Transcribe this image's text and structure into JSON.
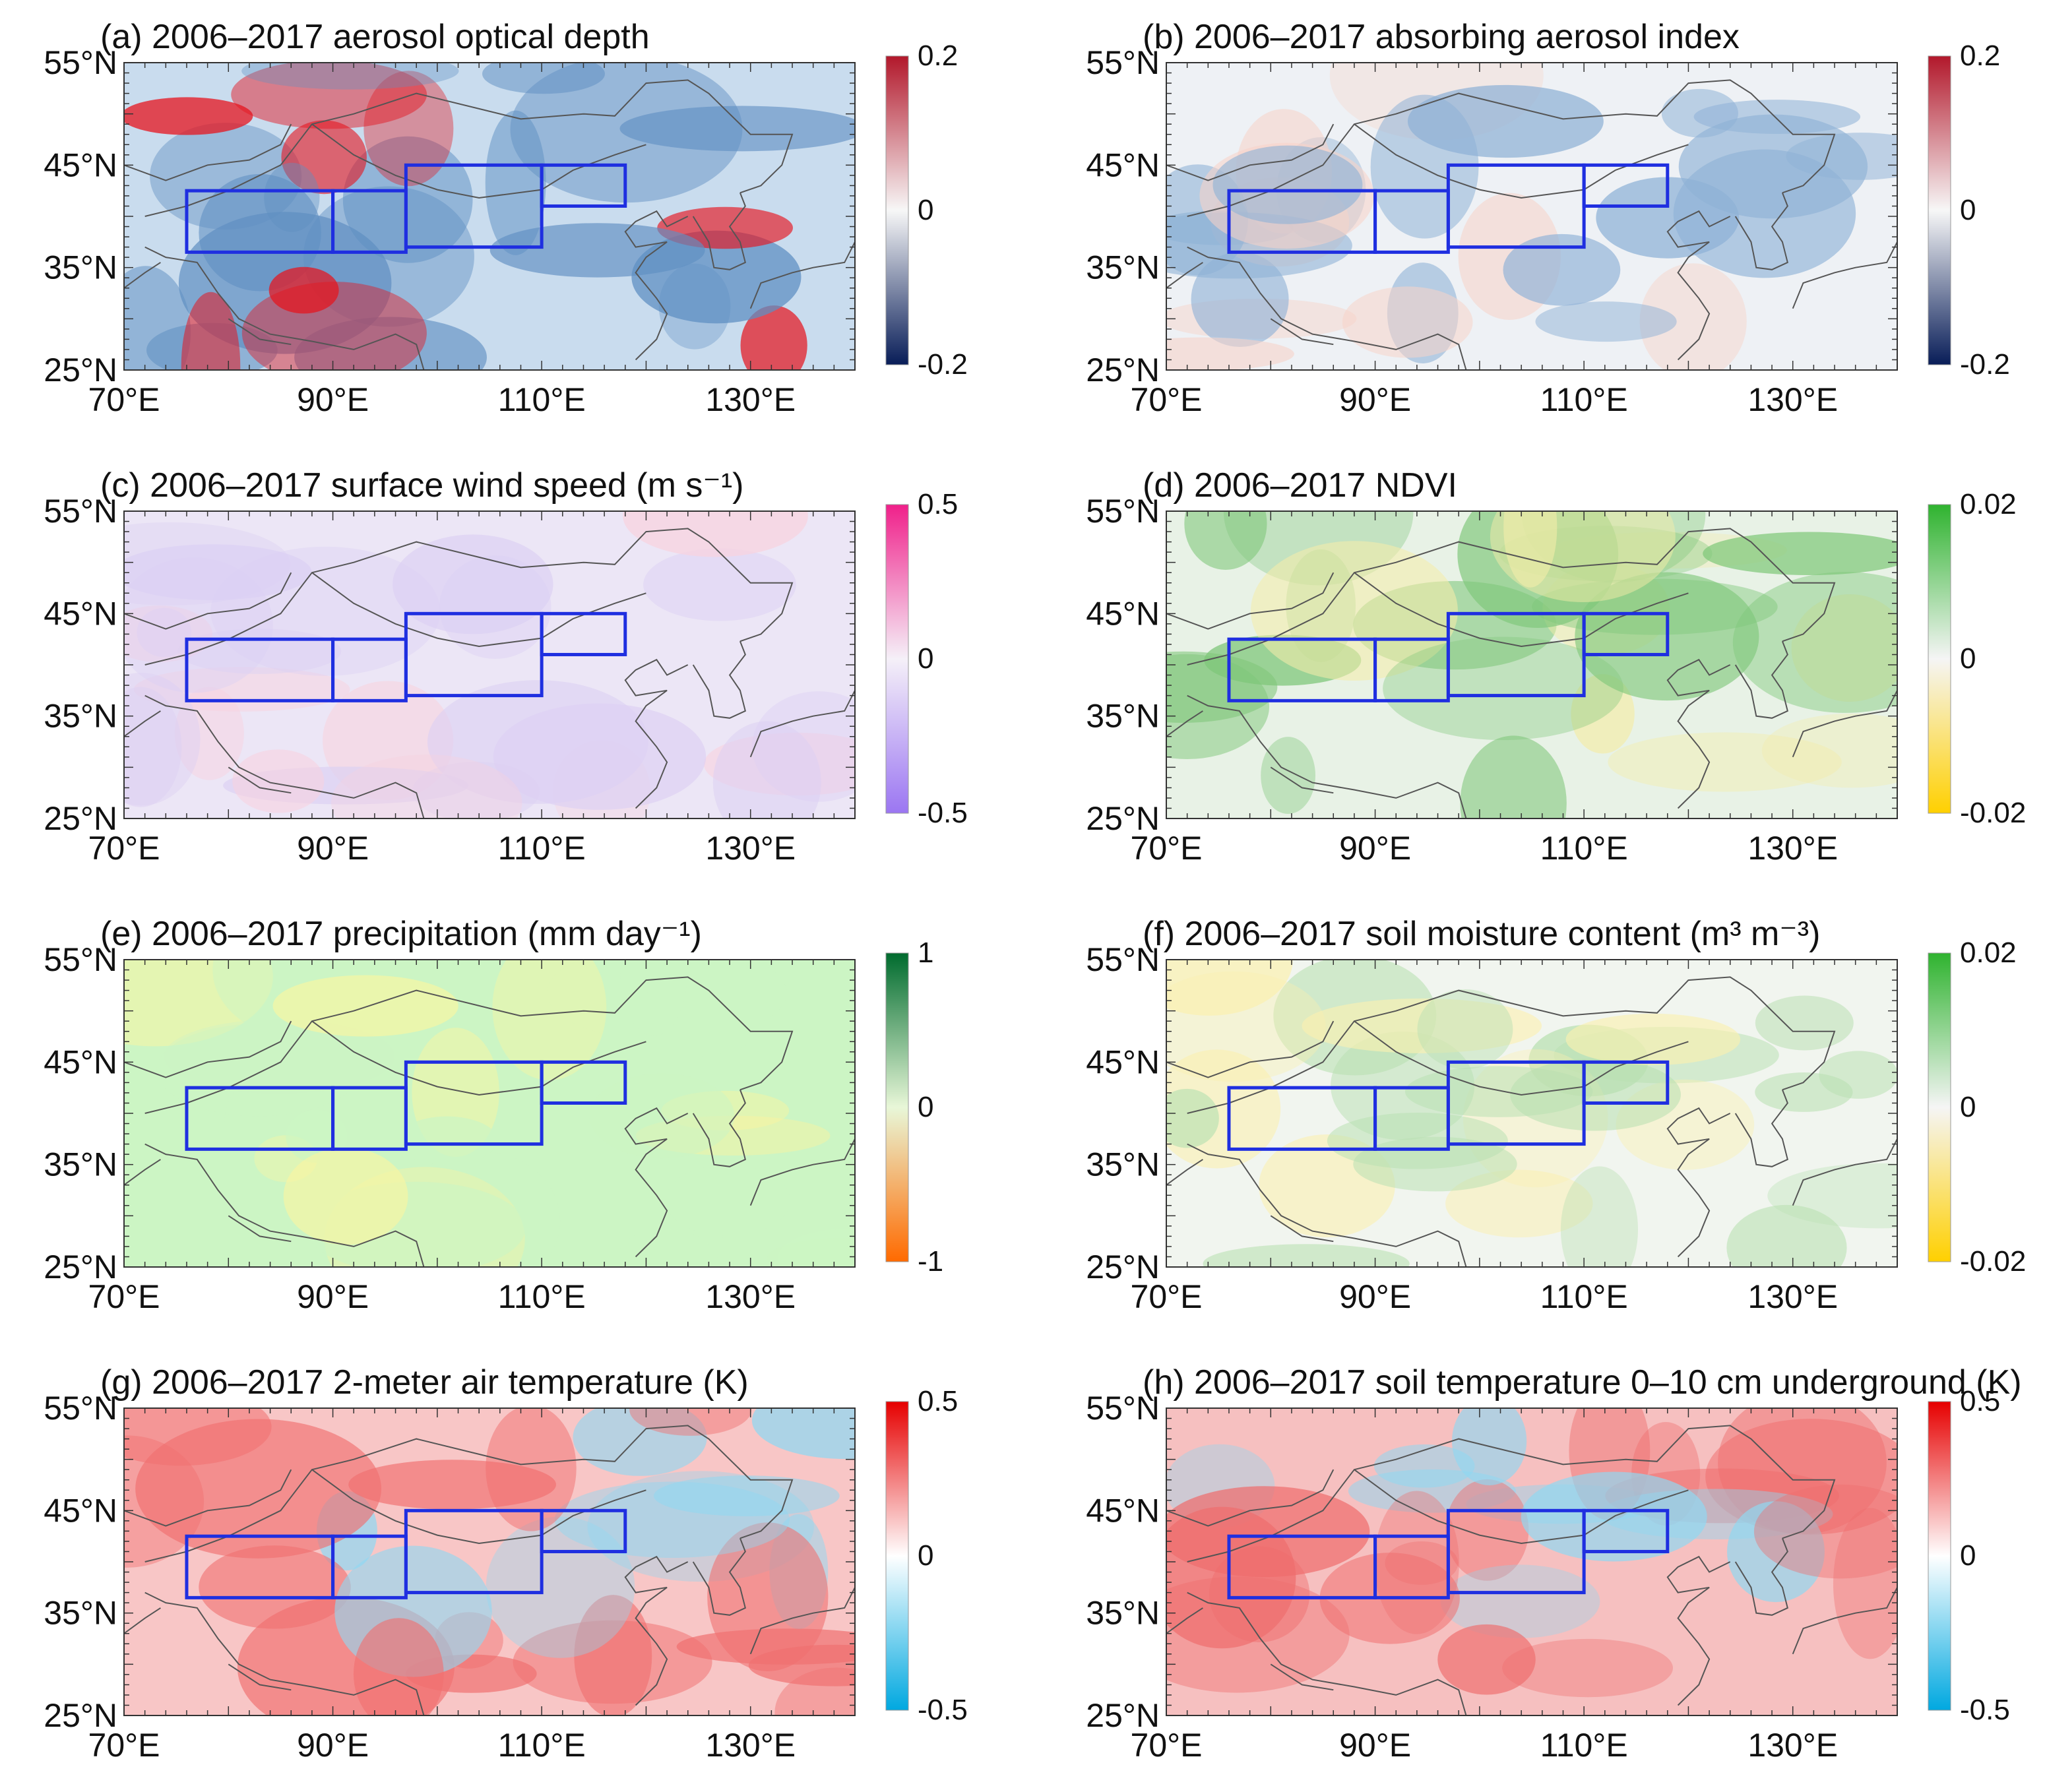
{
  "figure": {
    "lat_ticks": [
      "55°N",
      "45°N",
      "35°N",
      "25°N"
    ],
    "lon_ticks": [
      "70°E",
      "90°E",
      "110°E",
      "130°E"
    ],
    "extent": {
      "lon": [
        70,
        140
      ],
      "lat": [
        25,
        55
      ]
    },
    "regions_lonlat": [
      [
        76,
        90,
        36.5,
        42.5
      ],
      [
        90,
        97,
        36.5,
        42.5
      ],
      [
        97,
        110,
        37,
        45
      ],
      [
        110,
        118,
        41,
        45
      ]
    ],
    "box_color": "#1f2fe0"
  },
  "panels": [
    {
      "id": "a",
      "title": "(a) 2006–2017 aerosol optical depth",
      "cb_max": "0.2",
      "cb_mid": "0",
      "cb_min": "-0.2",
      "colors": {
        "top": "#b2182b",
        "mid": "#f7f7f7",
        "bot": "#081d58",
        "field": "#c9dcee",
        "strong": "#5f8fc2",
        "pos": "#e6141e"
      }
    },
    {
      "id": "b",
      "title": "(b) 2006–2017 absorbing aerosol index",
      "cb_max": "0.2",
      "cb_mid": "0",
      "cb_min": "-0.2",
      "colors": {
        "top": "#b2182b",
        "mid": "#f7f7f7",
        "bot": "#081d58",
        "field": "#eef1f5",
        "strong": "#8fb2d6",
        "pos": "#f7d3c8"
      }
    },
    {
      "id": "c",
      "title": "(c) 2006–2017 surface wind speed (m s⁻¹)",
      "cb_max": "0.5",
      "cb_mid": "0",
      "cb_min": "-0.5",
      "colors": {
        "top": "#f0208a",
        "mid": "#f5f0f8",
        "bot": "#9b76f2",
        "field": "#ece6f6",
        "strong": "#dcd0f3",
        "pos": "#f8d2df"
      }
    },
    {
      "id": "d",
      "title": "(d) 2006–2017 NDVI",
      "cb_max": "0.02",
      "cb_mid": "0",
      "cb_min": "-0.02",
      "colors": {
        "top": "#2fb32f",
        "mid": "#f5f5f5",
        "bot": "#ffd000",
        "field": "#e8f2e6",
        "strong": "#7fc77a",
        "pos": "#f4ecaa"
      }
    },
    {
      "id": "e",
      "title": "(e) 2006–2017 precipitation (mm day⁻¹)",
      "cb_max": "1",
      "cb_mid": "0",
      "cb_min": "-1",
      "colors": {
        "top": "#006b2e",
        "mid": "#e8f7d8",
        "bot": "#ff6a00",
        "field": "#ccf5c4",
        "strong": "#ccf5c4",
        "pos": "#fbf5a0"
      }
    },
    {
      "id": "f",
      "title": "(f)  2006–2017 soil moisture content (m³ m⁻³)",
      "cb_max": "0.02",
      "cb_mid": "0",
      "cb_min": "-0.02",
      "colors": {
        "top": "#2fb32f",
        "mid": "#f5f5f5",
        "bot": "#ffd000",
        "field": "#f1f5ef",
        "strong": "#b9e0b2",
        "pos": "#fbf0b0"
      }
    },
    {
      "id": "g",
      "title": "(g) 2006–2017 2-meter air temperature (K)",
      "cb_max": "0.5",
      "cb_mid": "0",
      "cb_min": "-0.5",
      "colors": {
        "top": "#e60000",
        "mid": "#ffffff",
        "bot": "#00a8e0",
        "field": "#f8c6c6",
        "strong": "#f07070",
        "pos": "#8fd8f2"
      }
    },
    {
      "id": "h",
      "title": "(h) 2006–2017 soil temperature 0–10 cm underground (K)",
      "cb_max": "0.5",
      "cb_mid": "0",
      "cb_min": "-0.5",
      "colors": {
        "top": "#e60000",
        "mid": "#ffffff",
        "bot": "#00a8e0",
        "field": "#f6c0c0",
        "strong": "#ef6d6d",
        "pos": "#8fd8f2"
      }
    }
  ]
}
